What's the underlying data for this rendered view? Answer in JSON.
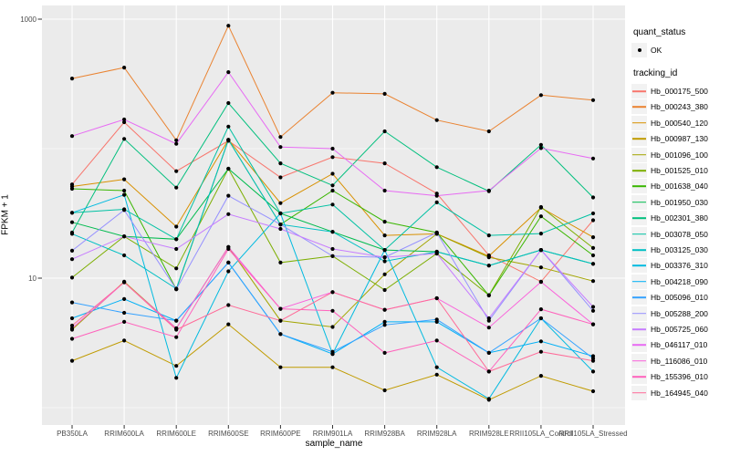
{
  "figure": {
    "background": "#FFFFFF",
    "panel_background": "#EBEBEB",
    "grid_color": "#FFFFFF",
    "point_color": "#000000",
    "tick_color": "#333333",
    "axis_text_color": "#4D4D4D"
  },
  "axes": {
    "x": {
      "title": "sample_name"
    },
    "y": {
      "title": "FPKM + 1",
      "scale": "log10",
      "major_ticks": [
        {
          "label": "1000",
          "value": 1000
        },
        {
          "label": "10",
          "value": 10
        }
      ],
      "minor_breaks": [
        100,
        1
      ]
    }
  },
  "legend": {
    "quant_status": {
      "title": "quant_status",
      "ok_label": "OK"
    },
    "tracking_id": {
      "title": "tracking_id"
    }
  },
  "chart_data": {
    "type": "line",
    "title": "",
    "xlabel": "sample_name",
    "ylabel": "FPKM + 1",
    "y_scale": "log10",
    "ylim": [
      1,
      1000
    ],
    "grid": true,
    "legend_position": "right",
    "point_marker": "black-dot",
    "categories": [
      "PB350LA",
      "RRIM600LA",
      "RRIM600LE",
      "RRIM600SE",
      "RRIM600PE",
      "RRIM901LA",
      "RRIM928BA",
      "RRIM928LA",
      "RRIM928LE",
      "RRII105LA_Control",
      "RRII105LA_Stressed"
    ],
    "series": [
      {
        "name": "Hb_000175_500",
        "color": "#F8766D",
        "values": [
          53,
          160,
          67,
          115,
          60,
          86,
          77,
          45,
          15,
          9.4,
          28
        ]
      },
      {
        "name": "Hb_000243_380",
        "color": "#EA8331",
        "values": [
          348,
          423,
          116,
          890,
          123,
          270,
          265,
          166,
          136,
          259,
          237
        ]
      },
      {
        "name": "Hb_000540_120",
        "color": "#D89000",
        "values": [
          51,
          58,
          25,
          117,
          38,
          64,
          21.4,
          22,
          14.8,
          35,
          20.7
        ]
      },
      {
        "name": "Hb_000987_130",
        "color": "#C09B00",
        "values": [
          2.3,
          3.3,
          2.1,
          4.4,
          2.05,
          2.05,
          1.36,
          1.8,
          1.15,
          1.76,
          1.34
        ]
      },
      {
        "name": "Hb_001096_100",
        "color": "#A3A500",
        "values": [
          4.0,
          9.4,
          4.1,
          17.4,
          4.7,
          4.2,
          10.7,
          22,
          14.5,
          12.1,
          9.5
        ]
      },
      {
        "name": "Hb_001525_010",
        "color": "#7CAE00",
        "values": [
          10.1,
          21,
          11.9,
          70,
          13.2,
          14.8,
          8.1,
          15.5,
          7.4,
          35.4,
          17.1
        ]
      },
      {
        "name": "Hb_001638_040",
        "color": "#39B600",
        "values": [
          49,
          47.4,
          8.2,
          117,
          26,
          47.4,
          27.3,
          22.5,
          7.35,
          30,
          15
        ]
      },
      {
        "name": "Hb_001950_030",
        "color": "#00BB4E",
        "values": [
          27,
          21,
          20,
          70,
          31.6,
          22.8,
          16.5,
          16,
          12.5,
          16.5,
          12.9
        ]
      },
      {
        "name": "Hb_002301_380",
        "color": "#00BF7D",
        "values": [
          22.5,
          119,
          50,
          225,
          77,
          52,
          136,
          72,
          47,
          107,
          42
        ]
      },
      {
        "name": "Hb_003078_050",
        "color": "#00C1A3",
        "values": [
          32,
          34,
          20,
          148,
          31.6,
          37,
          16.5,
          38.5,
          21.4,
          22.1,
          31.6
        ]
      },
      {
        "name": "Hb_003125_030",
        "color": "#00BFC4",
        "values": [
          22,
          15,
          8.3,
          117,
          26,
          22.8,
          13.5,
          16,
          12.5,
          16.5,
          12.9
        ]
      },
      {
        "name": "Hb_003376_310",
        "color": "#00BAE0",
        "values": [
          32,
          44,
          1.7,
          11.3,
          31.6,
          2.6,
          16.5,
          2.05,
          1.17,
          4.9,
          1.9
        ]
      },
      {
        "name": "Hb_004218_090",
        "color": "#00B0F6",
        "values": [
          4.9,
          6.9,
          4.7,
          13.2,
          3.7,
          2.6,
          4.6,
          4.6,
          2.65,
          3.25,
          2.5
        ]
      },
      {
        "name": "Hb_005096_010",
        "color": "#35A2FF",
        "values": [
          6.5,
          5.4,
          4.7,
          13.2,
          3.7,
          2.7,
          4.35,
          4.8,
          2.65,
          4.9,
          2.4
        ]
      },
      {
        "name": "Hb_005288_200",
        "color": "#9590FF",
        "values": [
          16.3,
          33.6,
          8.2,
          43.3,
          26,
          14.8,
          14.5,
          22.5,
          4.7,
          16.5,
          5.6
        ]
      },
      {
        "name": "Hb_005725_060",
        "color": "#C77CFF",
        "values": [
          14,
          21,
          16.8,
          31.2,
          24,
          16.8,
          14.5,
          15.5,
          4.9,
          16.5,
          6.0
        ]
      },
      {
        "name": "Hb_046117_010",
        "color": "#E76BF3",
        "values": [
          125,
          168,
          109,
          390,
          103,
          100,
          47.4,
          43.3,
          47.4,
          101,
          84
        ]
      },
      {
        "name": "Hb_116086_010",
        "color": "#FA62DB",
        "values": [
          4.1,
          9.3,
          4.1,
          17.4,
          5.8,
          7.8,
          5.7,
          7.0,
          4.15,
          9.35,
          4.4
        ]
      },
      {
        "name": "Hb_155396_010",
        "color": "#FF62BC",
        "values": [
          3.4,
          4.6,
          3.5,
          16.8,
          5.8,
          5.6,
          2.65,
          3.3,
          1.9,
          5.75,
          4.4
        ]
      },
      {
        "name": "Hb_164945_040",
        "color": "#FF6A98",
        "values": [
          4.3,
          9.3,
          4.0,
          6.2,
          4.7,
          7.8,
          5.7,
          7.0,
          1.9,
          2.7,
          2.3
        ]
      }
    ]
  }
}
